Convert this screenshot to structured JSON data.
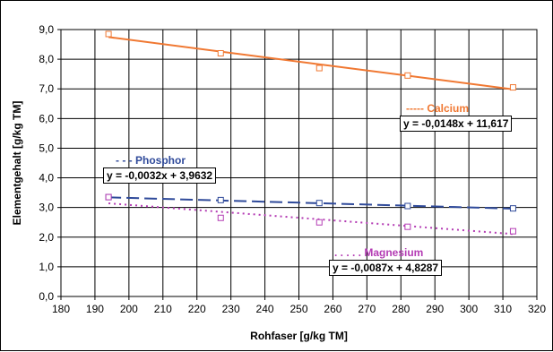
{
  "chart_data": {
    "type": "scatter",
    "xlabel": "Rohfaser [g/kg TM]",
    "ylabel": "Elementgehalt [g/kg TM]",
    "xlim": [
      180,
      320
    ],
    "ylim": [
      0,
      9
    ],
    "x_ticks": [
      "180",
      "190",
      "200",
      "210",
      "220",
      "230",
      "240",
      "250",
      "260",
      "270",
      "280",
      "290",
      "300",
      "310",
      "320"
    ],
    "y_ticks": [
      "0,0",
      "1,0",
      "2,0",
      "3,0",
      "4,0",
      "5,0",
      "6,0",
      "7,0",
      "8,0",
      "9,0"
    ],
    "grid": true,
    "series": [
      {
        "name": "----- Calcium",
        "color": "#f07832",
        "dash": "solid",
        "equation": "y = -0,0148x + 11,617",
        "slope": -0.0148,
        "intercept": 11.617,
        "x": [
          194,
          227,
          256,
          282,
          313
        ],
        "y": [
          8.85,
          8.2,
          7.7,
          7.45,
          7.05
        ]
      },
      {
        "name": "- - - Phosphor",
        "color": "#2f4a9a",
        "dash": "long",
        "equation": "y = -0,0032x + 3,9632",
        "slope": -0.0032,
        "intercept": 3.9632,
        "x": [
          194,
          227,
          256,
          282,
          313
        ],
        "y": [
          3.35,
          3.25,
          3.15,
          3.05,
          2.97
        ]
      },
      {
        "name": ". . . . . Magnesium",
        "color": "#b43cb4",
        "dash": "dot",
        "equation": "y = -0,0087x + 4,8287",
        "slope": -0.0087,
        "intercept": 4.8287,
        "x": [
          194,
          227,
          256,
          282,
          313
        ],
        "y": [
          3.35,
          2.65,
          2.5,
          2.35,
          2.2
        ]
      }
    ]
  }
}
